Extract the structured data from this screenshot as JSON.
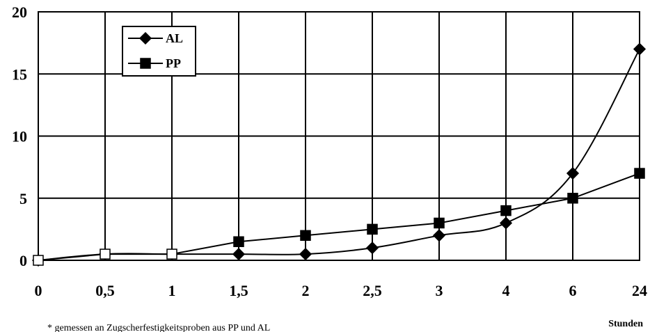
{
  "chart_data": {
    "type": "line",
    "categories": [
      "0",
      "0,5",
      "1",
      "1,5",
      "2",
      "2,5",
      "3",
      "4",
      "6",
      "24"
    ],
    "series": [
      {
        "name": "AL",
        "marker": "diamond",
        "values": [
          0,
          0.5,
          0.5,
          0.5,
          0.5,
          1,
          2,
          3,
          7,
          17
        ]
      },
      {
        "name": "PP",
        "marker": "square",
        "values": [
          0,
          0.5,
          0.5,
          1.5,
          2,
          2.5,
          3,
          4,
          5,
          7
        ]
      }
    ],
    "hollow_marker_indices": [
      0,
      1,
      2
    ],
    "ylim": [
      0,
      20
    ],
    "yticks": [
      0,
      5,
      10,
      15,
      20
    ],
    "xlabel": "Stunden",
    "footnote": "* gemessen an Zugscherfestigkeitsproben aus PP und AL",
    "grid": true,
    "legend": "top-left",
    "colors": {
      "line": "#000000",
      "background": "#ffffff"
    }
  }
}
